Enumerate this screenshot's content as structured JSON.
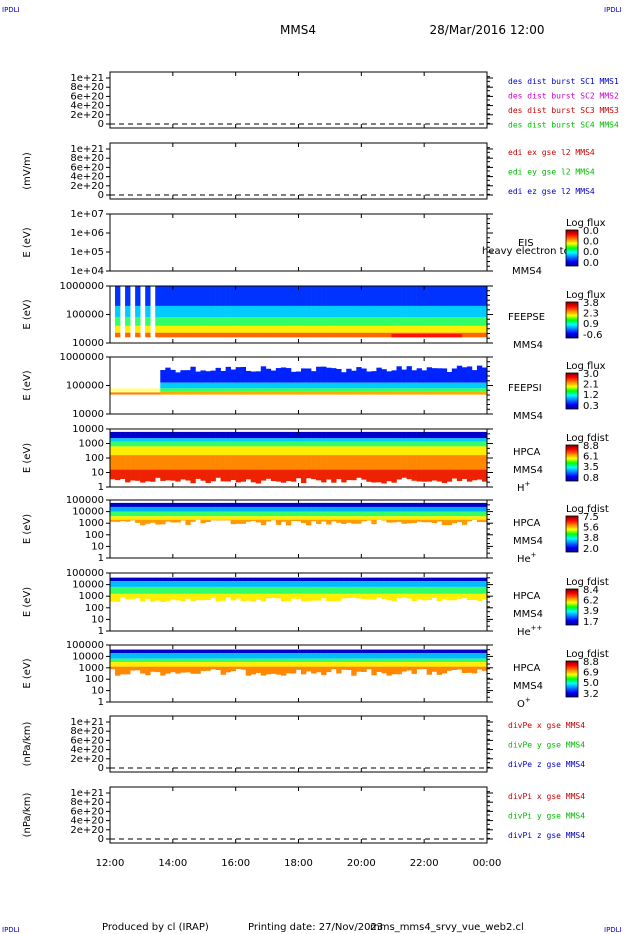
{
  "header": {
    "corner_tl": "IPDLI",
    "corner_tr": "IPDLI",
    "corner_bl": "IPDLI",
    "corner_br": "IPDLI",
    "spacecraft": "MMS4",
    "datetime": "28/Mar/2016 12:00"
  },
  "footer": {
    "produced_by": "Produced by cl (IRAP)",
    "printing_date": "Printing date: 27/Nov/2023",
    "script": "mms_mms4_srvy_vue_web2.cl"
  },
  "colors": {
    "blue": "#0000cc",
    "magenta": "#cc00cc",
    "red": "#cc0000",
    "green": "#00bb00"
  },
  "chart_data": [
    {
      "id": "des-dist",
      "type": "line",
      "ylabel": "",
      "yticks": [
        "1e+21",
        "8e+20",
        "6e+20",
        "4e+20",
        "2e+20",
        "0"
      ],
      "yticks_values": [
        1e+21,
        8e+20,
        6e+20,
        4e+20,
        2e+20,
        0
      ],
      "legend": [
        {
          "text": "des dist burst SC1 MMS1",
          "color": "#0000cc"
        },
        {
          "text": "des dist burst SC2 MMS2",
          "color": "#cc00cc"
        },
        {
          "text": "des dist burst SC3 MMS3",
          "color": "#cc0000"
        },
        {
          "text": "des dist burst SC4 MMS4",
          "color": "#00bb00"
        }
      ]
    },
    {
      "id": "edi-e",
      "type": "line",
      "ylabel": "(mV/m)",
      "yticks": [
        "1e+21",
        "8e+20",
        "6e+20",
        "4e+20",
        "2e+20",
        "0"
      ],
      "yticks_values": [
        1e+21,
        8e+20,
        6e+20,
        4e+20,
        2e+20,
        0
      ],
      "legend": [
        {
          "text": "edi ex gse l2 MMS4",
          "color": "#cc0000"
        },
        {
          "text": "edi ey gse l2 MMS4",
          "color": "#00bb00"
        },
        {
          "text": "edi ez gse l2 MMS4",
          "color": "#0000cc"
        }
      ]
    },
    {
      "id": "eis",
      "type": "heatmap",
      "ylabel": "E (eV)",
      "yticks": [
        "1e+07",
        "1e+06",
        "1e+05",
        "1e+04"
      ],
      "yscale": "log",
      "ylim": [
        10000,
        10000000
      ],
      "right_labels": [
        "EIS",
        "heavy electron to",
        "MMS4"
      ],
      "colorbar_title": "Log flux",
      "colorbar_values": [
        "0.0",
        "0.0",
        "0.0",
        "0.0"
      ],
      "filled": false
    },
    {
      "id": "feepse",
      "type": "heatmap",
      "ylabel": "E (eV)",
      "yticks": [
        "1000000",
        "100000",
        "10000"
      ],
      "yscale": "log",
      "ylim": [
        10000,
        1000000
      ],
      "right_labels": [
        "FEEPSE",
        "MMS4"
      ],
      "colorbar_title": "Log flux",
      "colorbar_values": [
        "3.8",
        "2.3",
        "0.9",
        "-0.6"
      ],
      "filled": true
    },
    {
      "id": "feepsi",
      "type": "heatmap",
      "ylabel": "E (eV)",
      "yticks": [
        "1000000",
        "100000",
        "10000"
      ],
      "yscale": "log",
      "ylim": [
        10000,
        1000000
      ],
      "right_labels": [
        "FEEPSI",
        "MMS4"
      ],
      "colorbar_title": "Log flux",
      "colorbar_values": [
        "3.0",
        "2.1",
        "1.2",
        "0.3"
      ],
      "filled": true
    },
    {
      "id": "hpca-h",
      "type": "heatmap",
      "ylabel": "E (eV)",
      "yticks": [
        "10000",
        "1000",
        "100",
        "10",
        "1"
      ],
      "yscale": "log",
      "ylim": [
        1,
        30000
      ],
      "right_labels": [
        "HPCA",
        "MMS4"
      ],
      "species": "H",
      "species_sup": "+",
      "colorbar_title": "Log fdist",
      "colorbar_values": [
        "8.8",
        "6.1",
        "3.5",
        "0.8"
      ],
      "filled": true
    },
    {
      "id": "hpca-he",
      "type": "heatmap",
      "ylabel": "E (eV)",
      "yticks": [
        "100000",
        "10000",
        "1000",
        "100",
        "10",
        "1"
      ],
      "yscale": "log",
      "ylim": [
        1,
        100000
      ],
      "right_labels": [
        "HPCA",
        "MMS4"
      ],
      "species": "He",
      "species_sup": "+",
      "colorbar_title": "Log fdist",
      "colorbar_values": [
        "7.5",
        "5.6",
        "3.8",
        "2.0"
      ],
      "filled": true
    },
    {
      "id": "hpca-hepp",
      "type": "heatmap",
      "ylabel": "E (eV)",
      "yticks": [
        "100000",
        "10000",
        "1000",
        "100",
        "10",
        "1"
      ],
      "yscale": "log",
      "ylim": [
        1,
        100000
      ],
      "right_labels": [
        "HPCA",
        "MMS4"
      ],
      "species": "He",
      "species_sup": "++",
      "colorbar_title": "Log fdist",
      "colorbar_values": [
        "8.4",
        "6.2",
        "3.9",
        "1.7"
      ],
      "filled": true
    },
    {
      "id": "hpca-o",
      "type": "heatmap",
      "ylabel": "E (eV)",
      "yticks": [
        "100000",
        "10000",
        "1000",
        "100",
        "10",
        "1"
      ],
      "yscale": "log",
      "ylim": [
        1,
        100000
      ],
      "right_labels": [
        "HPCA",
        "MMS4"
      ],
      "species": "O",
      "species_sup": "+",
      "colorbar_title": "Log fdist",
      "colorbar_values": [
        "8.8",
        "6.9",
        "5.0",
        "3.2"
      ],
      "filled": true
    },
    {
      "id": "divpe",
      "type": "line",
      "ylabel": "(nPa/km)",
      "yticks": [
        "1e+21",
        "8e+20",
        "6e+20",
        "4e+20",
        "2e+20",
        "0"
      ],
      "yticks_values": [
        1e+21,
        8e+20,
        6e+20,
        4e+20,
        2e+20,
        0
      ],
      "legend": [
        {
          "text": "divPe x gse MMS4",
          "color": "#cc0000"
        },
        {
          "text": "divPe y gse MMS4",
          "color": "#00bb00"
        },
        {
          "text": "divPe z gse MMS4",
          "color": "#0000cc"
        }
      ]
    },
    {
      "id": "divpi",
      "type": "line",
      "ylabel": "(nPa/km)",
      "yticks": [
        "1e+21",
        "8e+20",
        "6e+20",
        "4e+20",
        "2e+20",
        "0"
      ],
      "yticks_values": [
        1e+21,
        8e+20,
        6e+20,
        4e+20,
        2e+20,
        0
      ],
      "legend": [
        {
          "text": "divPi x gse MMS4",
          "color": "#cc0000"
        },
        {
          "text": "divPi y gse MMS4",
          "color": "#00bb00"
        },
        {
          "text": "divPi z gse MMS4",
          "color": "#0000cc"
        }
      ]
    }
  ],
  "x_axis": {
    "ticks": [
      "12:00",
      "14:00",
      "16:00",
      "18:00",
      "20:00",
      "22:00",
      "00:00"
    ],
    "tick_hours": [
      12,
      14,
      16,
      18,
      20,
      22,
      24
    ]
  }
}
